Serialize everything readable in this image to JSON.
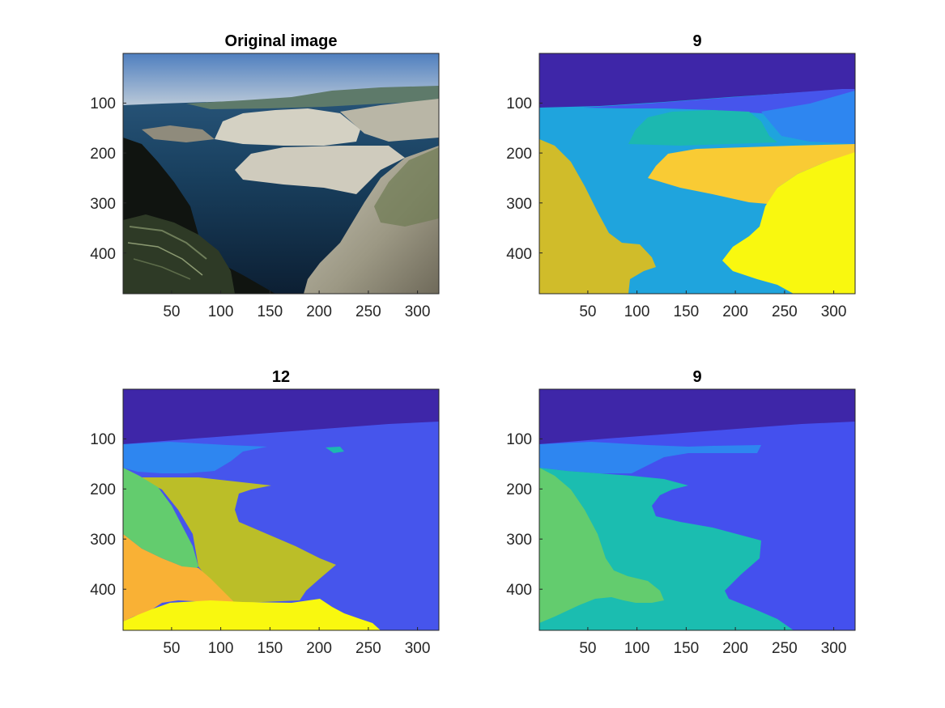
{
  "figure": {
    "panels": [
      {
        "id": "original",
        "title": "Original image"
      },
      {
        "id": "seg9a",
        "title": "9"
      },
      {
        "id": "seg12",
        "title": "12"
      },
      {
        "id": "seg9b",
        "title": "9"
      }
    ]
  },
  "chart_data": [
    {
      "type": "heatmap",
      "title": "Original image",
      "content": "photograph",
      "xlim": [
        0.5,
        321.5
      ],
      "ylim": [
        0.5,
        481.5
      ],
      "y_reversed": true,
      "xticks": [
        50,
        100,
        150,
        200,
        250,
        300
      ],
      "yticks": [
        100,
        200,
        300,
        400
      ]
    },
    {
      "type": "heatmap",
      "title": "9",
      "content": "segmentation-labels",
      "num_segments": 9,
      "xlim": [
        0.5,
        321.5
      ],
      "ylim": [
        0.5,
        481.5
      ],
      "y_reversed": true,
      "xticks": [
        50,
        100,
        150,
        200,
        250,
        300
      ],
      "yticks": [
        100,
        200,
        300,
        400
      ],
      "colors": [
        "#3E26A8",
        "#4655EC",
        "#2E86F0",
        "#1FA4DD",
        "#1CB8B0",
        "#D0BC2A",
        "#F9CB34",
        "#F9F80F"
      ]
    },
    {
      "type": "heatmap",
      "title": "12",
      "content": "segmentation-labels",
      "num_segments": 12,
      "xlim": [
        0.5,
        321.5
      ],
      "ylim": [
        0.5,
        481.5
      ],
      "y_reversed": true,
      "xticks": [
        50,
        100,
        150,
        200,
        250,
        300
      ],
      "yticks": [
        100,
        200,
        300,
        400
      ],
      "colors": [
        "#3E26A8",
        "#4655EC",
        "#2E86F0",
        "#1CB8B0",
        "#63CC6E",
        "#BBBE28",
        "#F9B135",
        "#F9F80F"
      ]
    },
    {
      "type": "heatmap",
      "title": "9",
      "content": "segmentation-labels",
      "num_segments": 9,
      "xlim": [
        0.5,
        321.5
      ],
      "ylim": [
        0.5,
        481.5
      ],
      "y_reversed": true,
      "xticks": [
        50,
        100,
        150,
        200,
        250,
        300
      ],
      "yticks": [
        100,
        200,
        300,
        400
      ],
      "colors": [
        "#3E26A8",
        "#4450EE",
        "#2E86F0",
        "#1BBDB0",
        "#63CC6E"
      ]
    }
  ]
}
